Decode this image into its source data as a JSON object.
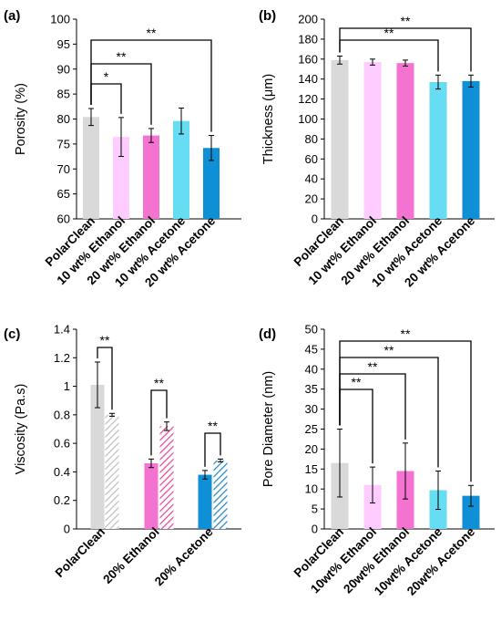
{
  "colors": {
    "grey": "#d9d9d9",
    "light_pink": "#ffccff",
    "pink": "#f472d0",
    "light_blue": "#66ddf2",
    "blue": "#0f8fd6",
    "grey_stripe": "#bfbfbf",
    "pink_stripe": "#e8429a",
    "blue_stripe": "#1e86c2"
  },
  "chart_data": [
    {
      "panel_label": "(a)",
      "type": "bar",
      "categories": [
        "PolarClean",
        "10 wt% Ethanol",
        "20 wt% Ethanol",
        "10 wt% Acetone",
        "20 wt% Acetone"
      ],
      "values": [
        80.4,
        76.4,
        76.7,
        79.6,
        74.2
      ],
      "errors": [
        1.7,
        3.9,
        1.4,
        2.6,
        2.5
      ],
      "bar_colors": [
        "grey",
        "light_pink",
        "pink",
        "light_blue",
        "blue"
      ],
      "xlabel": "",
      "ylabel": "Porosity (%)",
      "ylim": [
        60,
        100
      ],
      "yticks": [
        60,
        65,
        70,
        75,
        80,
        85,
        90,
        95,
        100
      ],
      "significance": [
        {
          "from": 0,
          "to": 1,
          "label": "*"
        },
        {
          "from": 0,
          "to": 2,
          "label": "**"
        },
        {
          "from": 0,
          "to": 4,
          "label": "**"
        }
      ]
    },
    {
      "panel_label": "(b)",
      "type": "bar",
      "categories": [
        "PolarClean",
        "10 wt% Ethanol",
        "20 wt% Ethanol",
        "10 wt% Acetone",
        "20 wt% Acetone"
      ],
      "values": [
        159,
        157,
        156,
        137,
        138
      ],
      "errors": [
        4,
        3,
        3,
        7,
        6
      ],
      "bar_colors": [
        "grey",
        "light_pink",
        "pink",
        "light_blue",
        "blue"
      ],
      "xlabel": "",
      "ylabel": "Thickness (μm)",
      "ylim": [
        0,
        200
      ],
      "yticks": [
        0,
        20,
        40,
        60,
        80,
        100,
        120,
        140,
        160,
        180,
        200
      ],
      "significance": [
        {
          "from": 0,
          "to": 3,
          "label": "**"
        },
        {
          "from": 0,
          "to": 4,
          "label": "**"
        }
      ]
    },
    {
      "panel_label": "(c)",
      "type": "bar",
      "categories": [
        "PolarClean",
        "20% Ethanol",
        "20% Acetone"
      ],
      "series": [
        {
          "values": [
            1.01,
            0.46,
            0.38
          ],
          "errors": [
            0.16,
            0.03,
            0.03
          ],
          "bar_colors": [
            "grey",
            "pink",
            "blue"
          ],
          "hatched": false
        },
        {
          "values": [
            0.8,
            0.72,
            0.48
          ],
          "errors": [
            0.01,
            0.03,
            0.01
          ],
          "bar_colors": [
            "grey_stripe",
            "pink_stripe",
            "blue_stripe"
          ],
          "hatched": true
        }
      ],
      "xlabel": "",
      "ylabel": "Viscosity (Pa.s)",
      "ylim": [
        0,
        1.4
      ],
      "yticks": [
        0,
        0.2,
        0.4,
        0.6,
        0.8,
        1,
        1.2,
        1.4
      ],
      "significance": [
        {
          "group": 0,
          "label": "**"
        },
        {
          "group": 1,
          "label": "**"
        },
        {
          "group": 2,
          "label": "**"
        }
      ]
    },
    {
      "panel_label": "(d)",
      "type": "bar",
      "categories": [
        "PolarClean",
        "10wt% Ethanol",
        "20wt% Ethanol",
        "10wt% Acetone",
        "20wt% Acetone"
      ],
      "values": [
        16.5,
        11.0,
        14.5,
        9.7,
        8.3
      ],
      "errors": [
        8.5,
        4.5,
        7.0,
        4.8,
        2.6
      ],
      "bar_colors": [
        "grey",
        "light_pink",
        "pink",
        "light_blue",
        "blue"
      ],
      "xlabel": "",
      "ylabel": "Pore Diameter (nm)",
      "ylim": [
        0,
        50
      ],
      "yticks": [
        0,
        5,
        10,
        15,
        20,
        25,
        30,
        35,
        40,
        45,
        50
      ],
      "significance": [
        {
          "from": 0,
          "to": 1,
          "label": "**"
        },
        {
          "from": 0,
          "to": 2,
          "label": "**"
        },
        {
          "from": 0,
          "to": 3,
          "label": "**"
        },
        {
          "from": 0,
          "to": 4,
          "label": "**"
        }
      ]
    }
  ]
}
